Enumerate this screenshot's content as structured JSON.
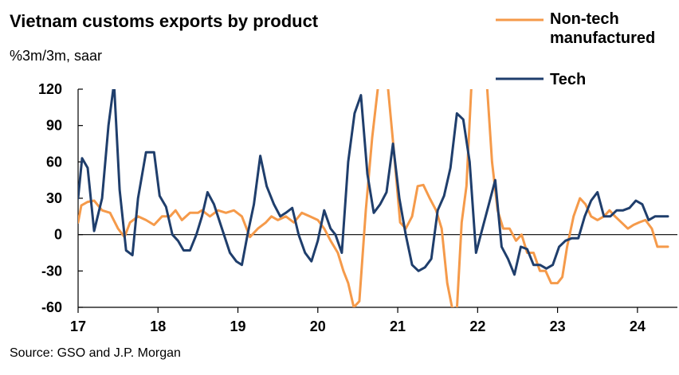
{
  "chart_data": {
    "type": "line",
    "title": "Vietnam customs exports by product",
    "subtitle": "%3m/3m, saar",
    "source": "Source: GSO and J.P. Morgan",
    "ylim": [
      -60,
      120
    ],
    "yticks": [
      -60,
      -30,
      0,
      30,
      60,
      90,
      120
    ],
    "xlim": [
      2017.0,
      2024.5
    ],
    "xticks": [
      {
        "value": 2017,
        "label": "17"
      },
      {
        "value": 2018,
        "label": "18"
      },
      {
        "value": 2019,
        "label": "19"
      },
      {
        "value": 2020,
        "label": "20"
      },
      {
        "value": 2021,
        "label": "21"
      },
      {
        "value": 2022,
        "label": "22"
      },
      {
        "value": 2023,
        "label": "23"
      },
      {
        "value": 2024,
        "label": "24"
      }
    ],
    "legend_position": "top-right",
    "series": [
      {
        "name": "Non-tech manufactured",
        "legend_lines": [
          "Non-tech",
          "manufactured"
        ],
        "color": "#F59A4A",
        "x": [
          2017.0,
          2017.04,
          2017.12,
          2017.2,
          2017.3,
          2017.4,
          2017.5,
          2017.58,
          2017.65,
          2017.75,
          2017.85,
          2017.95,
          2018.05,
          2018.15,
          2018.22,
          2018.3,
          2018.4,
          2018.5,
          2018.55,
          2018.65,
          2018.75,
          2018.85,
          2018.95,
          2019.05,
          2019.15,
          2019.25,
          2019.35,
          2019.42,
          2019.5,
          2019.6,
          2019.7,
          2019.8,
          2019.9,
          2020.0,
          2020.08,
          2020.16,
          2020.25,
          2020.32,
          2020.38,
          2020.45,
          2020.52,
          2020.6,
          2020.68,
          2020.75,
          2020.82,
          2020.88,
          2020.95,
          2021.03,
          2021.1,
          2021.18,
          2021.25,
          2021.32,
          2021.4,
          2021.48,
          2021.55,
          2021.62,
          2021.68,
          2021.74,
          2021.8,
          2021.86,
          2021.92,
          2021.98,
          2022.05,
          2022.12,
          2022.18,
          2022.25,
          2022.32,
          2022.4,
          2022.48,
          2022.55,
          2022.62,
          2022.7,
          2022.78,
          2022.85,
          2022.92,
          2023.0,
          2023.06,
          2023.12,
          2023.2,
          2023.28,
          2023.35,
          2023.42,
          2023.5,
          2023.58,
          2023.65,
          2023.72,
          2023.8,
          2023.88,
          2023.95,
          2024.02,
          2024.1,
          2024.18,
          2024.25,
          2024.32,
          2024.38
        ],
        "y": [
          10,
          24,
          27,
          28,
          20,
          18,
          5,
          -2,
          10,
          15,
          12,
          8,
          15,
          15,
          20,
          12,
          18,
          18,
          20,
          15,
          20,
          18,
          20,
          15,
          -2,
          5,
          10,
          15,
          12,
          15,
          10,
          18,
          15,
          12,
          5,
          -5,
          -15,
          -30,
          -40,
          -60,
          -55,
          20,
          80,
          120,
          130,
          120,
          70,
          10,
          5,
          15,
          40,
          41,
          30,
          20,
          5,
          -40,
          -60,
          -62,
          10,
          40,
          120,
          130,
          140,
          120,
          60,
          20,
          5,
          5,
          -5,
          0,
          -15,
          -15,
          -30,
          -30,
          -40,
          -40,
          -35,
          -10,
          15,
          30,
          25,
          15,
          12,
          15,
          20,
          15,
          10,
          5,
          8,
          10,
          12,
          5,
          -10,
          -10,
          -10
        ],
        "y_clip_note": "values beyond axis range are clipped"
      },
      {
        "name": "Tech",
        "legend_lines": [
          "Tech"
        ],
        "color": "#1F3E6C",
        "x": [
          2017.0,
          2017.05,
          2017.12,
          2017.2,
          2017.3,
          2017.38,
          2017.45,
          2017.52,
          2017.6,
          2017.68,
          2017.75,
          2017.85,
          2017.95,
          2018.02,
          2018.1,
          2018.18,
          2018.25,
          2018.32,
          2018.4,
          2018.48,
          2018.55,
          2018.62,
          2018.7,
          2018.8,
          2018.9,
          2018.98,
          2019.05,
          2019.12,
          2019.2,
          2019.28,
          2019.36,
          2019.45,
          2019.53,
          2019.6,
          2019.68,
          2019.76,
          2019.84,
          2019.92,
          2020.0,
          2020.08,
          2020.16,
          2020.22,
          2020.3,
          2020.38,
          2020.46,
          2020.54,
          2020.62,
          2020.7,
          2020.78,
          2020.86,
          2020.94,
          2021.02,
          2021.1,
          2021.18,
          2021.26,
          2021.34,
          2021.42,
          2021.5,
          2021.58,
          2021.66,
          2021.74,
          2021.82,
          2021.9,
          2021.98,
          2022.06,
          2022.14,
          2022.22,
          2022.3,
          2022.38,
          2022.46,
          2022.54,
          2022.62,
          2022.7,
          2022.78,
          2022.86,
          2022.94,
          2023.02,
          2023.1,
          2023.18,
          2023.26,
          2023.34,
          2023.42,
          2023.5,
          2023.58,
          2023.66,
          2023.74,
          2023.82,
          2023.9,
          2023.98,
          2024.06,
          2024.14,
          2024.22,
          2024.3,
          2024.38
        ],
        "y": [
          30,
          63,
          55,
          3,
          30,
          90,
          125,
          37,
          -13,
          -17,
          30,
          68,
          68,
          32,
          23,
          0,
          -5,
          -13,
          -13,
          0,
          15,
          35,
          25,
          5,
          -15,
          -22,
          -25,
          0,
          25,
          65,
          40,
          25,
          15,
          18,
          22,
          0,
          -15,
          -22,
          -5,
          20,
          5,
          0,
          -15,
          60,
          100,
          115,
          50,
          18,
          25,
          35,
          75,
          30,
          0,
          -25,
          -30,
          -27,
          -20,
          20,
          32,
          55,
          100,
          95,
          60,
          -15,
          5,
          25,
          45,
          -10,
          -20,
          -33,
          -10,
          -12,
          -25,
          -25,
          -28,
          -25,
          -10,
          -5,
          -3,
          -3,
          15,
          28,
          35,
          15,
          15,
          20,
          20,
          22,
          28,
          25,
          12,
          15,
          15,
          15
        ]
      }
    ]
  }
}
